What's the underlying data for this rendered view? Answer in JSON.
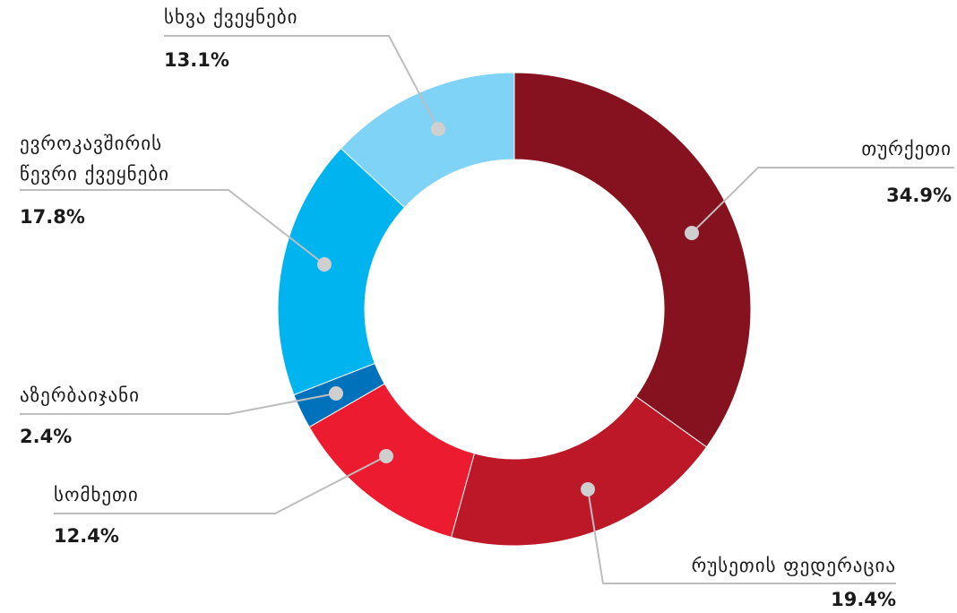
{
  "chart_data": {
    "type": "pie",
    "subtype": "donut",
    "categories": [
      "თურქეთი",
      "რუსეთის ფედერაცია",
      "სომხეთი",
      "აზერბაიჯანი",
      "ევროკავშირის წევრი ქვეყნები",
      "სხვა ქვეყნები"
    ],
    "values": [
      34.9,
      19.4,
      12.4,
      2.4,
      17.8,
      13.1
    ],
    "value_labels": [
      "34.9%",
      "19.4%",
      "12.4%",
      "2.4%",
      "17.8%",
      "13.1%"
    ],
    "colors": [
      "#87121f",
      "#bd1827",
      "#ed1b30",
      "#0072bc",
      "#00b4ef",
      "#7fd3f7"
    ],
    "legend": "none"
  }
}
